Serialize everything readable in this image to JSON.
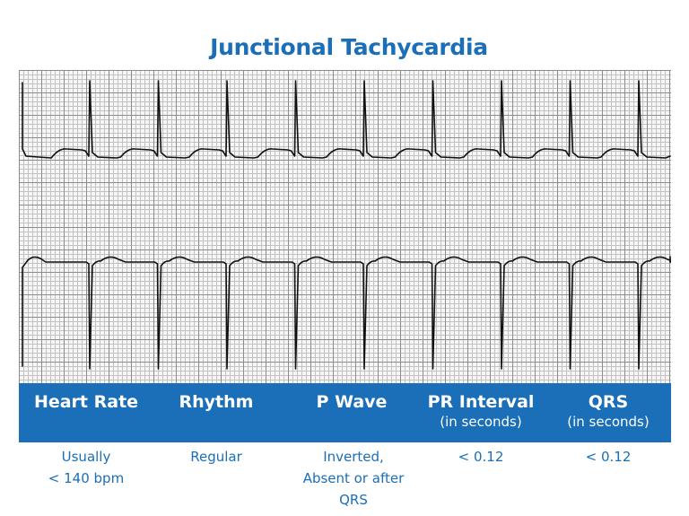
{
  "title": "Junctional Tachycardia",
  "columns": [
    {
      "header": "Heart Rate",
      "subheader": "",
      "value": [
        "Usually",
        "< 140 bpm"
      ]
    },
    {
      "header": "Rhythm",
      "subheader": "",
      "value": [
        "Regular"
      ]
    },
    {
      "header": "P Wave",
      "subheader": "",
      "value": [
        "Inverted,",
        "Absent or after",
        "QRS"
      ]
    },
    {
      "header": "PR Interval",
      "subheader": "(in seconds)",
      "value": [
        "< 0.12"
      ]
    },
    {
      "header": "QRS",
      "subheader": "(in seconds)",
      "value": [
        "< 0.12"
      ]
    }
  ],
  "colors": {
    "accent": "#1a6fb8",
    "header_text": "#ffffff",
    "grid_major": "#8c8c8c",
    "grid_minor": "#c2c2c2",
    "trace": "#111111"
  }
}
